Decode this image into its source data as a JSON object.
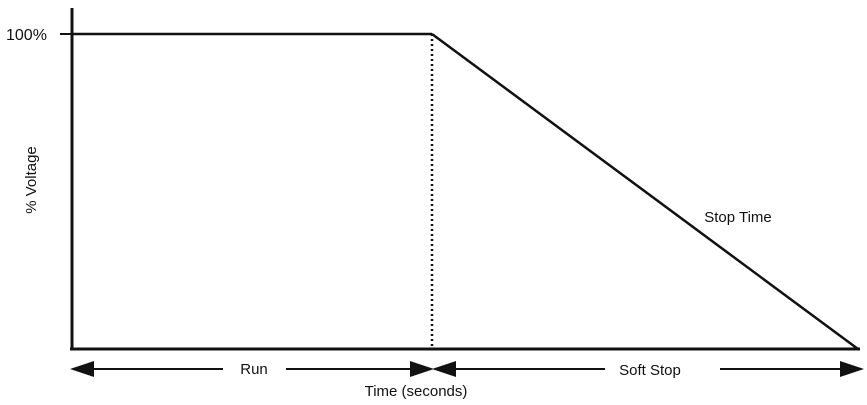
{
  "diagram": {
    "y_tick_label": "100%",
    "ylabel": "% Voltage",
    "xlabel": "Time (seconds)",
    "slope_label": "Stop Time",
    "phases": [
      {
        "label": "Run"
      },
      {
        "label": "Soft Stop"
      }
    ]
  },
  "colors": {
    "ink": "#111111",
    "background": "#ffffff"
  }
}
